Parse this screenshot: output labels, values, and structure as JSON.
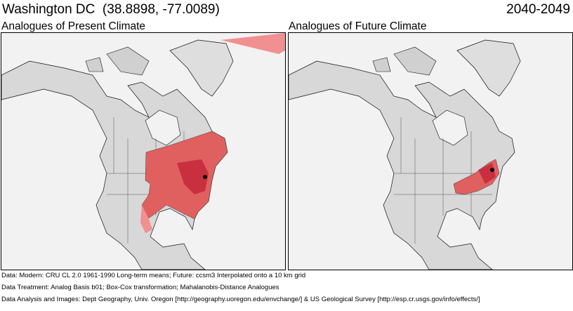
{
  "header": {
    "location": "Washington DC",
    "coordinates": "(38.8898, -77.0089)",
    "period": "2040-2049"
  },
  "panels": [
    {
      "title": "Analogues of Present Climate",
      "analog_color": "#e06060",
      "highlight_color": "#c83040"
    },
    {
      "title": "Analogues of Future Climate",
      "analog_color": "#e06060",
      "highlight_color": "#c83040"
    }
  ],
  "footer": {
    "line1": "Data:  Modern: CRU CL 2.0 1961-1990 Long-term means; Future: ccsm3 Interpolated onto a 10 km grid",
    "line2": "Data Treatment:  Analog Basis b01; Box-Cox transformation; Mahalanobis-Distance Analogues",
    "line3": "Data Analysis and Images:  Dept Geography, Univ. Oregon [http://geography.uoregon.edu/envchange/] & US Geological Survey [http://esp.cr.usgs.gov/info/effects/]"
  }
}
